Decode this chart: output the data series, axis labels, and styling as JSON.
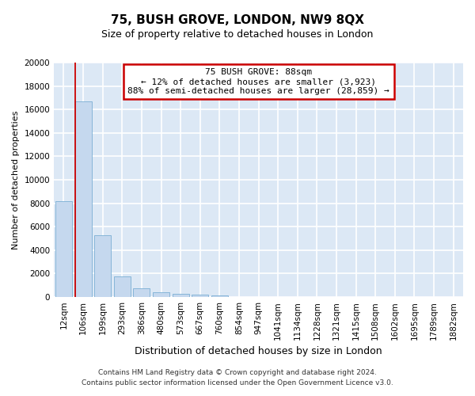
{
  "title": "75, BUSH GROVE, LONDON, NW9 8QX",
  "subtitle": "Size of property relative to detached houses in London",
  "xlabel": "Distribution of detached houses by size in London",
  "ylabel": "Number of detached properties",
  "categories": [
    "12sqm",
    "106sqm",
    "199sqm",
    "293sqm",
    "386sqm",
    "480sqm",
    "573sqm",
    "667sqm",
    "760sqm",
    "854sqm",
    "947sqm",
    "1041sqm",
    "1134sqm",
    "1228sqm",
    "1321sqm",
    "1415sqm",
    "1508sqm",
    "1602sqm",
    "1695sqm",
    "1789sqm",
    "1882sqm"
  ],
  "values": [
    8150,
    16700,
    5300,
    1750,
    750,
    380,
    280,
    220,
    170,
    0,
    0,
    0,
    0,
    0,
    0,
    0,
    0,
    0,
    0,
    0,
    0
  ],
  "bar_color": "#c5d8ee",
  "bar_edgecolor": "#7aafd4",
  "ylim": [
    0,
    20000
  ],
  "yticks": [
    0,
    2000,
    4000,
    6000,
    8000,
    10000,
    12000,
    14000,
    16000,
    18000,
    20000
  ],
  "annotation_line1": "75 BUSH GROVE: 88sqm",
  "annotation_line2": "← 12% of detached houses are smaller (3,923)",
  "annotation_line3": "88% of semi-detached houses are larger (28,859) →",
  "annotation_box_facecolor": "#ffffff",
  "annotation_box_edgecolor": "#cc0000",
  "property_line_color": "#cc0000",
  "property_line_x": 0.575,
  "footer_line1": "Contains HM Land Registry data © Crown copyright and database right 2024.",
  "footer_line2": "Contains public sector information licensed under the Open Government Licence v3.0.",
  "fig_facecolor": "#ffffff",
  "ax_facecolor": "#dce8f5",
  "grid_color": "#ffffff",
  "title_fontsize": 11,
  "subtitle_fontsize": 9,
  "ylabel_fontsize": 8,
  "xlabel_fontsize": 9,
  "tick_fontsize": 7.5,
  "footer_fontsize": 6.5
}
